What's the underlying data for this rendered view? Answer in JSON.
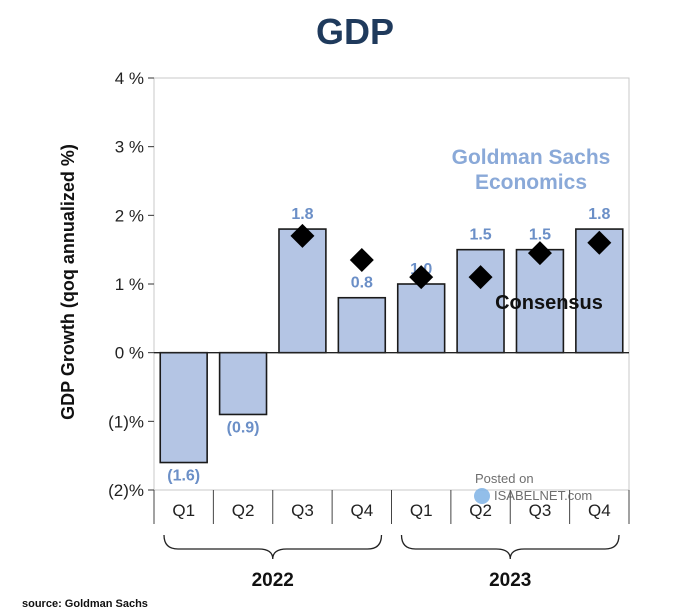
{
  "title": "GDP",
  "source": "source: Goldman Sachs",
  "watermark": {
    "line1": "Posted on",
    "line2": "ISABELNET.com"
  },
  "colors": {
    "bar_fill": "#b4c5e4",
    "bar_stroke": "#1a1a1a",
    "label": "#6b8fc7",
    "title": "#1f3a5c",
    "annotation": "#8aa9d8"
  },
  "chart_data": {
    "type": "bar",
    "ylabel": "GDP Growth (qoq annualized %)",
    "ylim": [
      -2,
      4
    ],
    "yticks": [
      {
        "value": 4,
        "label": "4 %"
      },
      {
        "value": 3,
        "label": "3 %"
      },
      {
        "value": 2,
        "label": "2 %"
      },
      {
        "value": 1,
        "label": "1 %"
      },
      {
        "value": 0,
        "label": "0 %"
      },
      {
        "value": -1,
        "label": "(1)%"
      },
      {
        "value": -2,
        "label": "(2)%"
      }
    ],
    "categories": [
      "Q1",
      "Q2",
      "Q3",
      "Q4",
      "Q1",
      "Q2",
      "Q3",
      "Q4"
    ],
    "groups": [
      {
        "label": "2022",
        "from": 0,
        "to": 3
      },
      {
        "label": "2023",
        "from": 4,
        "to": 7
      }
    ],
    "series": [
      {
        "name": "Goldman Sachs Economics",
        "type": "bar",
        "values": [
          -1.6,
          -0.9,
          1.8,
          0.8,
          1.0,
          1.5,
          1.5,
          1.8
        ],
        "labels": [
          "(1.6)",
          "(0.9)",
          "1.8",
          "0.8",
          "1.0",
          "1.5",
          "1.5",
          "1.8"
        ]
      },
      {
        "name": "Consensus",
        "type": "scatter",
        "marker": "diamond",
        "values": [
          null,
          null,
          1.7,
          1.35,
          1.1,
          1.1,
          1.45,
          1.6
        ]
      }
    ],
    "annotations": {
      "gs_line1": "Goldman Sachs",
      "gs_line2": "Economics",
      "consensus": "Consensus"
    },
    "grid": false,
    "legend": "none"
  }
}
